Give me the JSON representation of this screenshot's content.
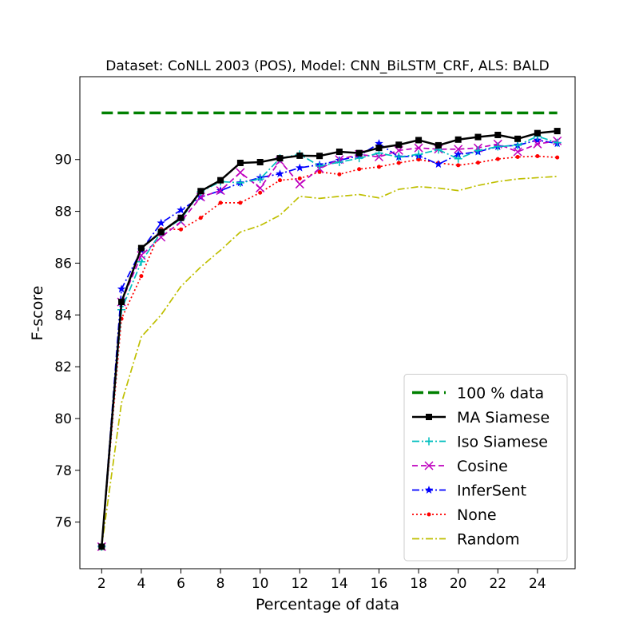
{
  "chart_data": {
    "type": "line",
    "title": "Dataset: CoNLL 2003 (POS), Model: CNN_BiLSTM_CRF, ALS: BALD",
    "xlabel": "Percentage of data",
    "ylabel": "F-score",
    "xlim": [
      0.9,
      25.9
    ],
    "ylim": [
      74.2,
      93.2
    ],
    "xticks": [
      2,
      4,
      6,
      8,
      10,
      12,
      14,
      16,
      18,
      20,
      22,
      24
    ],
    "yticks": [
      76,
      78,
      80,
      82,
      84,
      86,
      88,
      90
    ],
    "grid": false,
    "legend_position": "lower-right",
    "series": [
      {
        "name": "100 % data",
        "color": "#008000",
        "style": "dashed",
        "marker": "none",
        "x": [
          2,
          25
        ],
        "y": [
          91.8,
          91.8
        ]
      },
      {
        "name": "MA Siamese",
        "color": "#000000",
        "style": "solid",
        "marker": "square",
        "x": [
          2,
          3,
          4,
          5,
          6,
          7,
          8,
          9,
          10,
          11,
          12,
          13,
          14,
          15,
          16,
          17,
          18,
          19,
          20,
          21,
          22,
          23,
          24,
          25
        ],
        "y": [
          75.05,
          84.5,
          86.58,
          87.2,
          87.75,
          88.78,
          89.2,
          89.87,
          89.9,
          90.05,
          90.15,
          90.14,
          90.3,
          90.25,
          90.45,
          90.57,
          90.75,
          90.55,
          90.77,
          90.87,
          90.95,
          90.8,
          91.02,
          91.1
        ]
      },
      {
        "name": "Iso Siamese",
        "color": "#00bfbf",
        "style": "dashdot",
        "marker": "plus",
        "x": [
          2,
          3,
          4,
          5,
          6,
          7,
          8,
          9,
          10,
          11,
          12,
          13,
          14,
          15,
          16,
          17,
          18,
          19,
          20,
          21,
          22,
          23,
          24,
          25
        ],
        "y": [
          75.05,
          84.2,
          86.05,
          87.2,
          87.7,
          88.75,
          89.15,
          89.1,
          89.25,
          90.05,
          90.2,
          89.75,
          89.9,
          90.05,
          90.25,
          90.1,
          90.2,
          90.38,
          90.03,
          90.35,
          90.5,
          90.55,
          90.9,
          90.65
        ]
      },
      {
        "name": "Cosine",
        "color": "#bf00bf",
        "style": "dashed",
        "marker": "x",
        "x": [
          2,
          3,
          4,
          5,
          6,
          7,
          8,
          9,
          10,
          11,
          12,
          13,
          14,
          15,
          16,
          17,
          18,
          19,
          20,
          21,
          22,
          23,
          24,
          25
        ],
        "y": [
          75.05,
          84.5,
          86.3,
          87.0,
          87.6,
          88.55,
          88.8,
          89.5,
          88.9,
          89.95,
          89.05,
          89.65,
          90.0,
          90.2,
          90.1,
          90.35,
          90.45,
          90.4,
          90.4,
          90.45,
          90.6,
          90.3,
          90.6,
          90.72
        ]
      },
      {
        "name": "InferSent",
        "color": "#0000ff",
        "style": "dashdot",
        "marker": "star",
        "x": [
          2,
          3,
          4,
          5,
          6,
          7,
          8,
          9,
          10,
          11,
          12,
          13,
          14,
          15,
          16,
          17,
          18,
          19,
          20,
          21,
          22,
          23,
          24,
          25
        ],
        "y": [
          75.05,
          85.0,
          86.5,
          87.55,
          88.05,
          88.55,
          88.8,
          89.1,
          89.3,
          89.45,
          89.68,
          89.8,
          89.97,
          90.15,
          90.62,
          90.1,
          90.15,
          89.82,
          90.2,
          90.3,
          90.5,
          90.55,
          90.75,
          90.62
        ]
      },
      {
        "name": "None",
        "color": "#ff0000",
        "style": "dotted",
        "marker": "dot",
        "x": [
          2,
          3,
          4,
          5,
          6,
          7,
          8,
          9,
          10,
          11,
          12,
          13,
          14,
          15,
          16,
          17,
          18,
          19,
          20,
          21,
          22,
          23,
          24,
          25
        ],
        "y": [
          75.05,
          83.85,
          85.5,
          87.32,
          87.3,
          87.75,
          88.33,
          88.33,
          88.72,
          89.2,
          89.27,
          89.52,
          89.43,
          89.63,
          89.72,
          89.87,
          90.0,
          89.87,
          89.78,
          89.88,
          90.02,
          90.1,
          90.13,
          90.08
        ]
      },
      {
        "name": "Random",
        "color": "#bfbf00",
        "style": "dashdot",
        "marker": "none",
        "x": [
          2,
          3,
          4,
          5,
          6,
          7,
          8,
          9,
          10,
          11,
          12,
          13,
          14,
          15,
          16,
          17,
          18,
          19,
          20,
          21,
          22,
          23,
          24,
          25
        ],
        "y": [
          75.05,
          80.6,
          83.15,
          84.0,
          85.1,
          85.85,
          86.5,
          87.2,
          87.45,
          87.85,
          88.58,
          88.5,
          88.58,
          88.65,
          88.52,
          88.85,
          88.95,
          88.9,
          88.8,
          89.0,
          89.15,
          89.25,
          89.3,
          89.35
        ]
      }
    ]
  }
}
